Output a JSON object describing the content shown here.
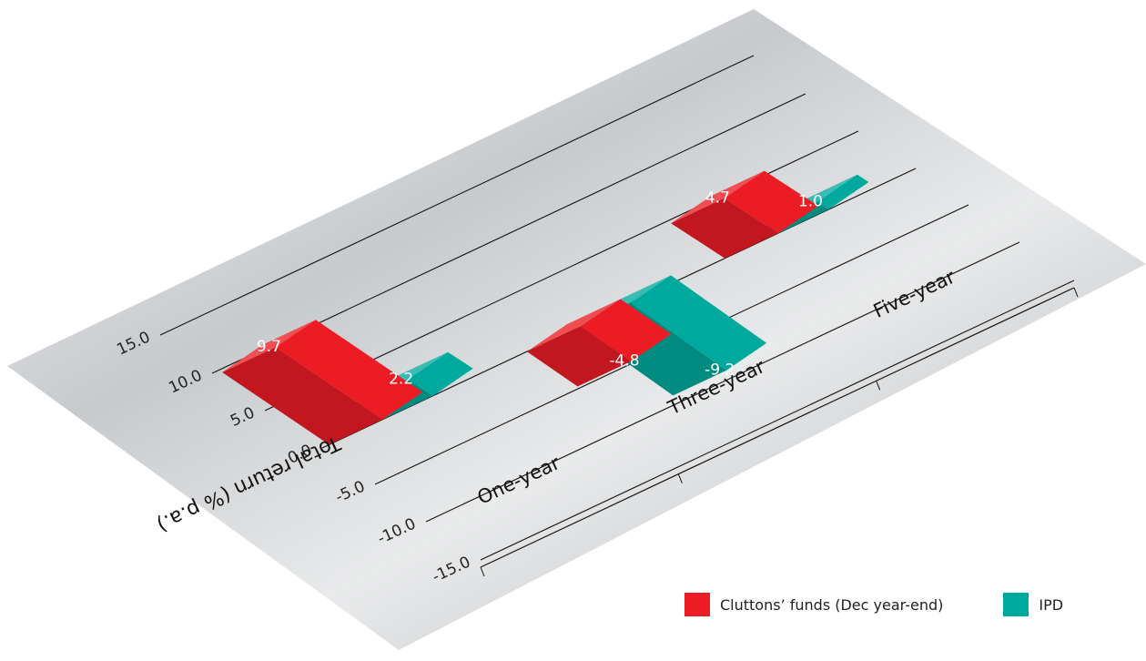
{
  "chart_data": {
    "type": "bar",
    "categories": [
      "One-year",
      "Three-year",
      "Five-year"
    ],
    "series": [
      {
        "name": "Cluttons’ funds (Dec year-end)",
        "values": [
          9.7,
          -4.8,
          4.7
        ],
        "color": "#ed1c24"
      },
      {
        "name": "IPD",
        "values": [
          2.2,
          -9.2,
          1.0
        ],
        "color": "#00a99d"
      }
    ],
    "value_labels": [
      [
        "9.7",
        "-4.8",
        "4.7"
      ],
      [
        "2.2",
        "-9.2",
        "1.0"
      ]
    ],
    "ylabel": "Total return (% p.a.)",
    "xlabel": "",
    "title": "",
    "ylim": [
      -15,
      15
    ],
    "yticks": [
      15,
      10,
      5,
      0,
      -5,
      -10,
      -15
    ],
    "ytick_labels": [
      "15.0",
      "10.0",
      "5.0",
      "0.0",
      "-5.0",
      "-10.0",
      "-15.0"
    ],
    "grid": true,
    "legend_position": "bottom-right",
    "style": "3d-perspective"
  },
  "legend": {
    "cluttons_label": "Cluttons’ funds (Dec year-end)",
    "ipd_label": "IPD"
  }
}
